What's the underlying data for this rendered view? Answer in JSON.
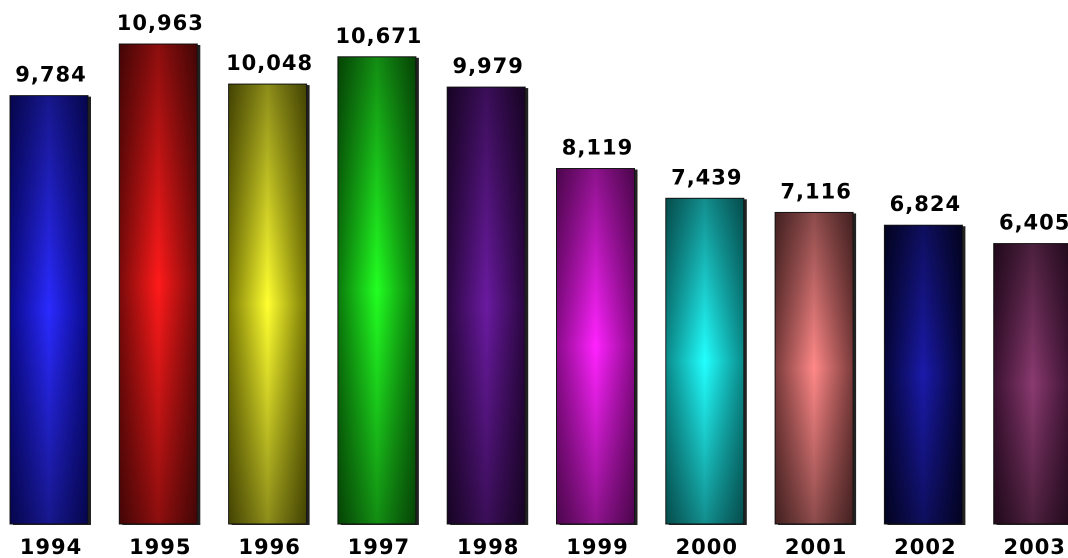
{
  "chart_data": {
    "type": "bar",
    "title": "",
    "xlabel": "",
    "ylabel": "",
    "categories": [
      "1994",
      "1995",
      "1996",
      "1997",
      "1998",
      "1999",
      "2000",
      "2001",
      "2002",
      "2003"
    ],
    "values": [
      9784,
      10963,
      10048,
      10671,
      9979,
      8119,
      7439,
      7116,
      6824,
      6405
    ],
    "value_labels": [
      "9,784",
      "10,963",
      "10,048",
      "10,671",
      "9,979",
      "8,119",
      "7,439",
      "7,116",
      "6,824",
      "6,405"
    ],
    "ylim": [
      0,
      10963
    ],
    "grid": false,
    "legend": "none",
    "bar_colors": [
      {
        "light": "#2a2aff",
        "dark": "#0a0a8a"
      },
      {
        "light": "#ff1a1a",
        "dark": "#7a0a0a"
      },
      {
        "light": "#ffff30",
        "dark": "#7a7a05"
      },
      {
        "light": "#22ff22",
        "dark": "#0a7a0a"
      },
      {
        "light": "#6a1aa0",
        "dark": "#2a0640"
      },
      {
        "light": "#ff22ff",
        "dark": "#8a0a8a"
      },
      {
        "light": "#22ffff",
        "dark": "#0a8a8a"
      },
      {
        "light": "#ff8888",
        "dark": "#7a3a3a"
      },
      {
        "light": "#1a1aaa",
        "dark": "#05053a"
      },
      {
        "light": "#8a3a70",
        "dark": "#3a1030"
      }
    ]
  }
}
